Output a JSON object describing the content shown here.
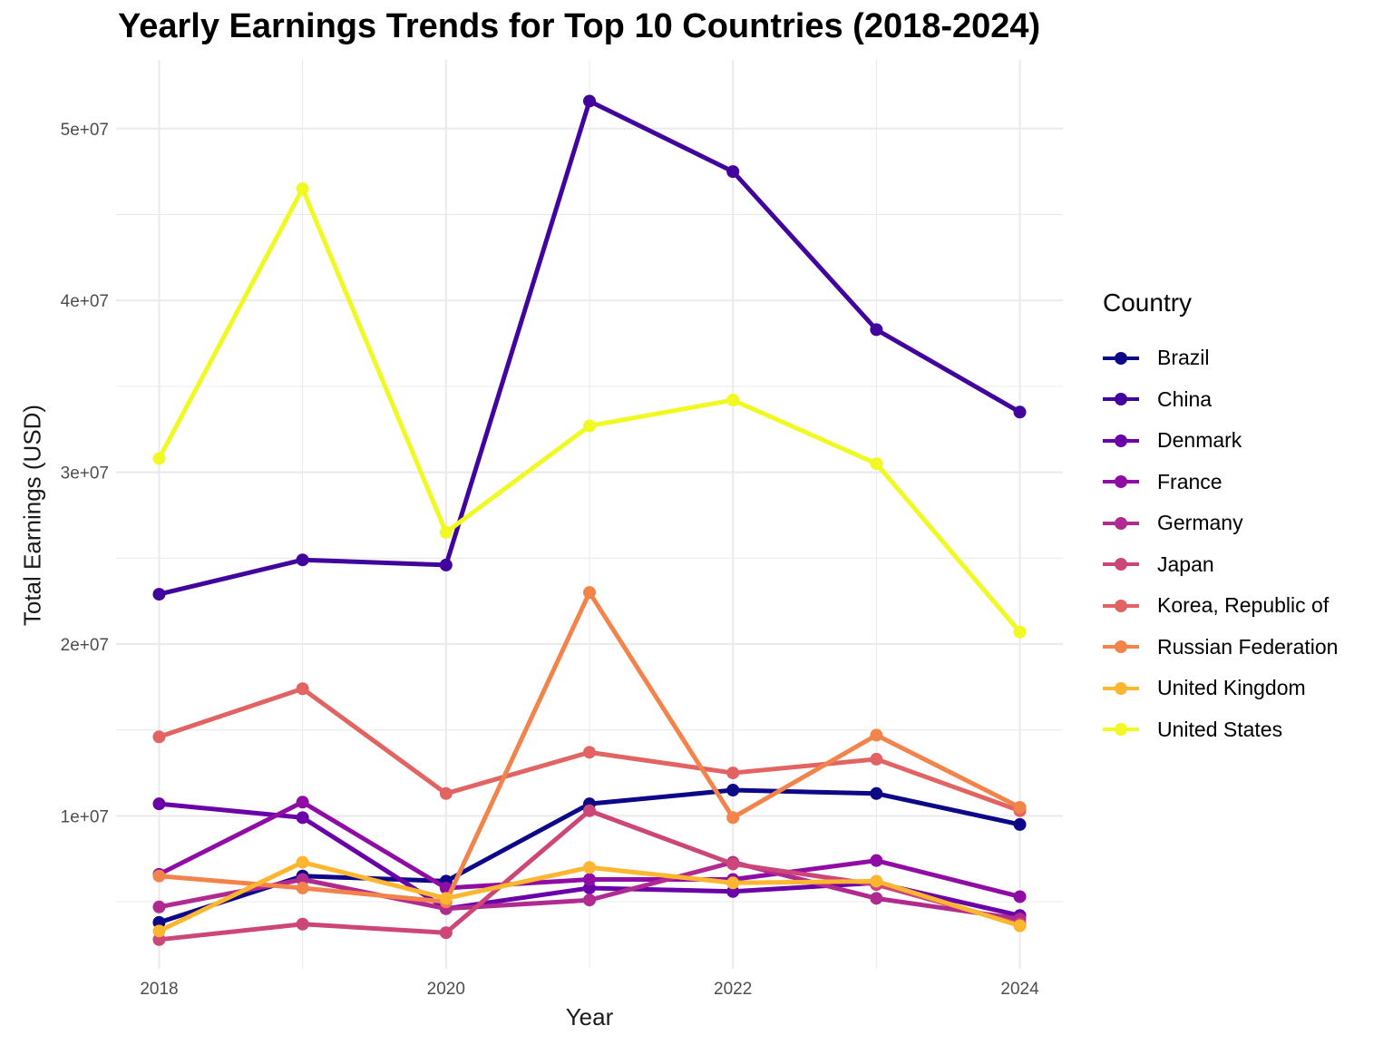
{
  "chart_data": {
    "type": "line",
    "title": "Yearly Earnings Trends for Top 10 Countries (2018-2024)",
    "xlabel": "Year",
    "ylabel": "Total Earnings (USD)",
    "x": [
      2018,
      2019,
      2020,
      2021,
      2022,
      2023,
      2024
    ],
    "x_ticks": [
      2018,
      2020,
      2022,
      2024
    ],
    "x_tick_labels": [
      "2018",
      "2020",
      "2022",
      "2024"
    ],
    "xlim": [
      2017.7,
      2024.3
    ],
    "y_ticks": [
      10000000,
      20000000,
      30000000,
      40000000,
      50000000
    ],
    "y_tick_labels": [
      "1e+07",
      "2e+07",
      "3e+07",
      "4e+07",
      "5e+07"
    ],
    "ylim": [
      1100000,
      54000000
    ],
    "grid": true,
    "legend": {
      "title": "Country",
      "position": "right"
    },
    "series": [
      {
        "name": "Brazil",
        "color": "#0d0887",
        "values": [
          3800000,
          6500000,
          6200000,
          10700000,
          11500000,
          11300000,
          9500000
        ]
      },
      {
        "name": "China",
        "color": "#41049d",
        "values": [
          22900000,
          24900000,
          24600000,
          51600000,
          47500000,
          38300000,
          33500000
        ]
      },
      {
        "name": "Denmark",
        "color": "#6a00a8",
        "values": [
          10700000,
          9900000,
          4600000,
          5800000,
          5600000,
          6100000,
          4200000
        ]
      },
      {
        "name": "France",
        "color": "#8f0da4",
        "values": [
          6600000,
          10800000,
          5800000,
          6300000,
          6300000,
          7400000,
          5300000
        ]
      },
      {
        "name": "Germany",
        "color": "#b12a90",
        "values": [
          4700000,
          6300000,
          4600000,
          5100000,
          7300000,
          5200000,
          4000000
        ]
      },
      {
        "name": "Japan",
        "color": "#cc4778",
        "values": [
          2800000,
          3700000,
          3200000,
          10300000,
          7200000,
          6000000,
          3700000
        ]
      },
      {
        "name": "Korea, Republic of",
        "color": "#e16462",
        "values": [
          14600000,
          17400000,
          11300000,
          13700000,
          12500000,
          13300000,
          10300000
        ]
      },
      {
        "name": "Russian Federation",
        "color": "#f2844b",
        "values": [
          6500000,
          5800000,
          5000000,
          23000000,
          9900000,
          14700000,
          10500000
        ]
      },
      {
        "name": "United Kingdom",
        "color": "#fcb62f",
        "values": [
          3300000,
          7300000,
          5200000,
          7000000,
          6100000,
          6200000,
          3600000
        ]
      },
      {
        "name": "United States",
        "color": "#f0f921",
        "values": [
          30800000,
          46500000,
          26500000,
          32700000,
          34200000,
          30500000,
          20700000
        ]
      }
    ]
  }
}
